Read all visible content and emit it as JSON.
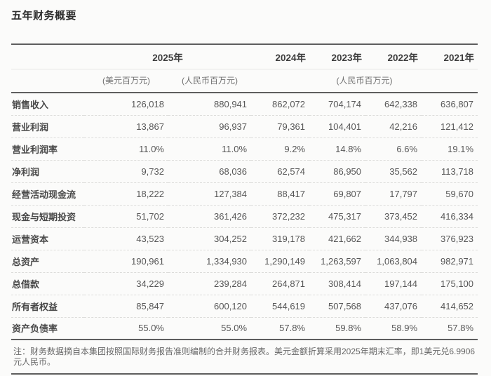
{
  "title": "五年财务概要",
  "table": {
    "year_headers": [
      "2025年",
      "2024年",
      "2023年",
      "2022年",
      "2021年"
    ],
    "unit_headers": {
      "usd": "(美元百万元)",
      "rmb_2025": "(人民币百万元)",
      "rmb_group": "(人民币百万元)"
    },
    "rows": [
      {
        "label": "销售收入",
        "values": [
          "126,018",
          "880,941",
          "862,072",
          "704,174",
          "642,338",
          "636,807"
        ]
      },
      {
        "label": "营业利润",
        "values": [
          "13,867",
          "96,937",
          "79,361",
          "104,401",
          "42,216",
          "121,412"
        ]
      },
      {
        "label": "营业利润率",
        "values": [
          "11.0%",
          "11.0%",
          "9.2%",
          "14.8%",
          "6.6%",
          "19.1%"
        ]
      },
      {
        "label": "净利润",
        "values": [
          "9,732",
          "68,036",
          "62,574",
          "86,950",
          "35,562",
          "113,718"
        ]
      },
      {
        "label": "经营活动现金流",
        "values": [
          "18,222",
          "127,384",
          "88,417",
          "69,807",
          "17,797",
          "59,670"
        ]
      },
      {
        "label": "现金与短期投资",
        "values": [
          "51,702",
          "361,426",
          "372,232",
          "475,317",
          "373,452",
          "416,334"
        ]
      },
      {
        "label": "运营资本",
        "values": [
          "43,523",
          "304,252",
          "319,178",
          "421,662",
          "344,938",
          "376,923"
        ]
      },
      {
        "label": "总资产",
        "values": [
          "190,961",
          "1,334,930",
          "1,290,149",
          "1,263,597",
          "1,063,804",
          "982,971"
        ]
      },
      {
        "label": "总借款",
        "values": [
          "34,229",
          "239,284",
          "264,871",
          "308,414",
          "197,144",
          "175,100"
        ]
      },
      {
        "label": "所有者权益",
        "values": [
          "85,847",
          "600,120",
          "544,619",
          "507,568",
          "437,076",
          "414,652"
        ]
      },
      {
        "label": "资产负债率",
        "values": [
          "55.0%",
          "55.0%",
          "57.8%",
          "59.8%",
          "58.9%",
          "57.8%"
        ]
      }
    ]
  },
  "note": "注：财务数据摘自本集团按照国际财务报告准则编制的合并财务报表。美元金额折算采用2025年期末汇率，即1美元兑6.9906元人民币。",
  "colors": {
    "rule_dark": "#5e5e5e",
    "rule_light": "#e6e6e4",
    "row_divider": "#dcdcda",
    "background": "#fbfbfa"
  }
}
